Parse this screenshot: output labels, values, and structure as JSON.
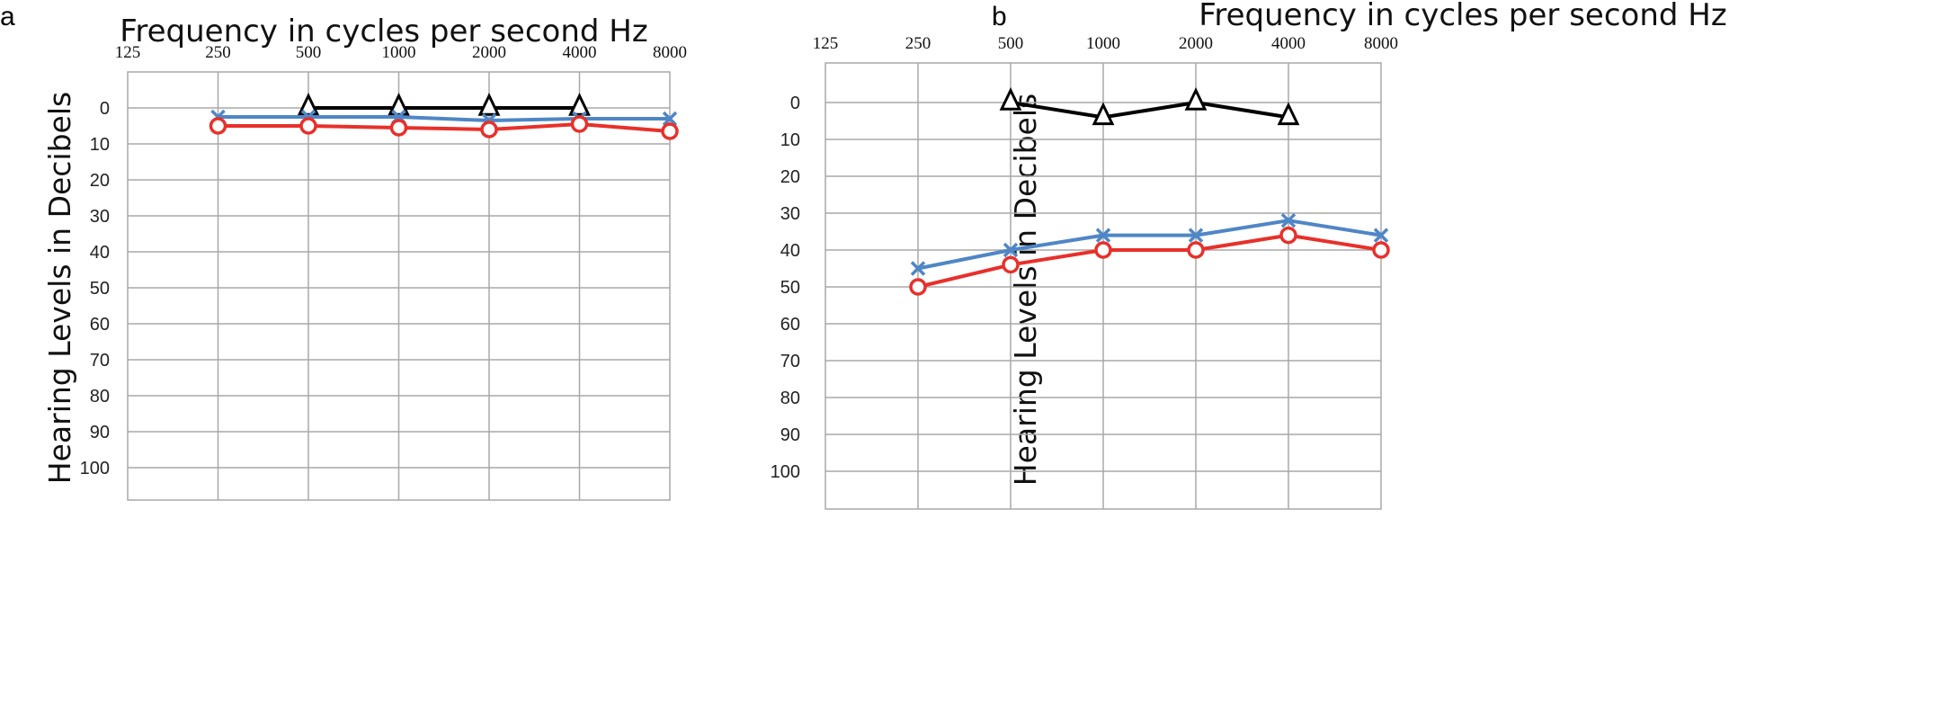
{
  "figure": {
    "panels": [
      {
        "letter": "a",
        "chart_data": {
          "type": "line",
          "title": "Frequency in cycles per second Hz",
          "xlabel": "",
          "ylabel": "Hearing Levels in Decibels",
          "categories": [
            "125",
            "250",
            "500",
            "1000",
            "2000",
            "4000",
            "8000"
          ],
          "yticks": [
            "0",
            "10",
            "20",
            "30",
            "40",
            "50",
            "60",
            "70",
            "80",
            "90",
            "100"
          ],
          "ylim": [
            -10,
            110
          ],
          "y_inverted": true,
          "grid": true,
          "series": [
            {
              "color": "#000000",
              "marker": "triangle",
              "values": [
                null,
                null,
                0,
                0,
                0,
                0,
                null
              ]
            },
            {
              "color": "#4f86c6",
              "marker": "x",
              "values": [
                null,
                2.5,
                2.5,
                2.5,
                3.5,
                3,
                3
              ]
            },
            {
              "color": "#e8302a",
              "marker": "circle",
              "values": [
                null,
                5,
                5,
                5.5,
                6,
                4.5,
                6.5
              ]
            }
          ]
        }
      },
      {
        "letter": "b",
        "chart_data": {
          "type": "line",
          "title": "Frequency in cycles per second Hz",
          "xlabel": "",
          "ylabel": "Hearing Levels in Decibels",
          "categories": [
            "125",
            "250",
            "500",
            "1000",
            "2000",
            "4000",
            "8000"
          ],
          "yticks": [
            "0",
            "10",
            "20",
            "30",
            "40",
            "50",
            "60",
            "70",
            "80",
            "90",
            "100"
          ],
          "ylim": [
            -10,
            110
          ],
          "y_inverted": true,
          "grid": true,
          "series": [
            {
              "color": "#000000",
              "marker": "triangle",
              "values": [
                null,
                null,
                0,
                4,
                0,
                4,
                null
              ]
            },
            {
              "color": "#4f86c6",
              "marker": "x",
              "values": [
                null,
                45,
                40,
                36,
                36,
                32,
                36
              ]
            },
            {
              "color": "#e8302a",
              "marker": "circle",
              "values": [
                null,
                50,
                44,
                40,
                40,
                36,
                40
              ]
            }
          ]
        }
      }
    ]
  }
}
